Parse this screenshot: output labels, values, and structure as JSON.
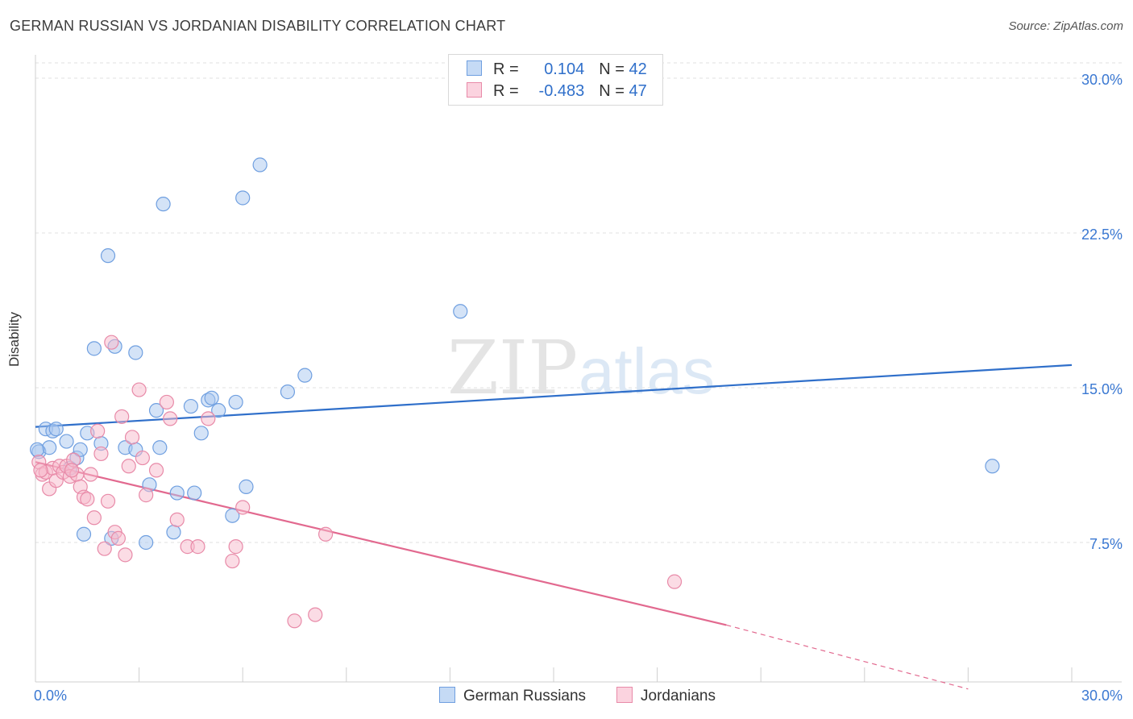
{
  "title": "GERMAN RUSSIAN VS JORDANIAN DISABILITY CORRELATION CHART",
  "source": "Source: ZipAtlas.com",
  "watermark": {
    "zip": "ZIP",
    "atlas": "atlas"
  },
  "legend": {
    "rows": [
      {
        "r_label": "R =",
        "r_value": "0.104",
        "n_label": "N =",
        "n_value": "42",
        "color": "#a9c8f0",
        "border": "#6f9fe0"
      },
      {
        "r_label": "R =",
        "r_value": "-0.483",
        "n_label": "N =",
        "n_value": "47",
        "color": "#f7b9cc",
        "border": "#e88aa8"
      }
    ]
  },
  "bottom_legend": [
    {
      "label": "German Russians",
      "color": "#a9c8f0",
      "border": "#6f9fe0"
    },
    {
      "label": "Jordanians",
      "color": "#f7b9cc",
      "border": "#e88aa8"
    }
  ],
  "chart_data": {
    "type": "scatter",
    "title": "GERMAN RUSSIAN VS JORDANIAN DISABILITY CORRELATION CHART",
    "xlabel": "",
    "ylabel": "Disability",
    "xlim": [
      0,
      30
    ],
    "ylim": [
      0,
      30
    ],
    "x_tick_labels": [
      "0.0%",
      "30.0%"
    ],
    "y_ticks": [
      7.5,
      15.0,
      22.5,
      30.0
    ],
    "y_tick_labels": [
      "7.5%",
      "15.0%",
      "22.5%",
      "30.0%"
    ],
    "grid": true,
    "series": [
      {
        "name": "German Russians",
        "color": "#6f9fe0",
        "fill": "#a9c8f0",
        "line_color": "#2f6fca",
        "trend": {
          "x": [
            0,
            30
          ],
          "y": [
            13.1,
            16.1
          ],
          "dashed_to": null
        },
        "points": [
          [
            0.1,
            11.9
          ],
          [
            0.3,
            13.0
          ],
          [
            0.5,
            12.9
          ],
          [
            0.6,
            13.0
          ],
          [
            0.4,
            12.1
          ],
          [
            0.9,
            12.4
          ],
          [
            1.0,
            11.1
          ],
          [
            1.2,
            11.6
          ],
          [
            1.3,
            12.0
          ],
          [
            1.5,
            12.8
          ],
          [
            1.9,
            12.3
          ],
          [
            1.4,
            7.9
          ],
          [
            2.2,
            7.7
          ],
          [
            2.6,
            12.1
          ],
          [
            2.9,
            12.0
          ],
          [
            3.2,
            7.5
          ],
          [
            3.3,
            10.3
          ],
          [
            3.5,
            13.9
          ],
          [
            3.6,
            12.1
          ],
          [
            4.0,
            8.0
          ],
          [
            4.1,
            9.9
          ],
          [
            4.5,
            14.1
          ],
          [
            4.6,
            9.9
          ],
          [
            4.8,
            12.8
          ],
          [
            5.0,
            14.4
          ],
          [
            5.1,
            14.5
          ],
          [
            5.3,
            13.9
          ],
          [
            5.7,
            8.8
          ],
          [
            5.8,
            14.3
          ],
          [
            6.1,
            10.2
          ],
          [
            7.3,
            14.8
          ],
          [
            7.8,
            15.6
          ],
          [
            1.7,
            16.9
          ],
          [
            2.3,
            17.0
          ],
          [
            2.9,
            16.7
          ],
          [
            2.1,
            21.4
          ],
          [
            3.7,
            23.9
          ],
          [
            6.0,
            24.2
          ],
          [
            6.5,
            25.8
          ],
          [
            12.3,
            18.7
          ],
          [
            27.7,
            11.2
          ],
          [
            0.05,
            12.0
          ]
        ]
      },
      {
        "name": "Jordanians",
        "color": "#e88aa8",
        "fill": "#f7b9cc",
        "line_color": "#e2698f",
        "trend": {
          "x": [
            0,
            20
          ],
          "y": [
            11.4,
            3.5
          ],
          "dashed_x_end": 27.0,
          "dashed_y_end": 0.4
        },
        "points": [
          [
            0.1,
            11.4
          ],
          [
            0.2,
            10.8
          ],
          [
            0.3,
            10.9
          ],
          [
            0.4,
            10.1
          ],
          [
            0.5,
            11.1
          ],
          [
            0.6,
            10.5
          ],
          [
            0.7,
            11.2
          ],
          [
            0.8,
            10.9
          ],
          [
            0.9,
            11.2
          ],
          [
            1.0,
            10.7
          ],
          [
            1.1,
            11.5
          ],
          [
            1.2,
            10.8
          ],
          [
            1.3,
            10.2
          ],
          [
            1.4,
            9.7
          ],
          [
            1.5,
            9.6
          ],
          [
            1.6,
            10.8
          ],
          [
            1.7,
            8.7
          ],
          [
            1.8,
            12.9
          ],
          [
            1.9,
            11.8
          ],
          [
            2.0,
            7.2
          ],
          [
            2.1,
            9.5
          ],
          [
            2.3,
            8.0
          ],
          [
            2.4,
            7.7
          ],
          [
            2.5,
            13.6
          ],
          [
            2.6,
            6.9
          ],
          [
            2.7,
            11.2
          ],
          [
            2.8,
            12.6
          ],
          [
            3.0,
            14.9
          ],
          [
            3.1,
            11.6
          ],
          [
            3.2,
            9.8
          ],
          [
            3.5,
            11.0
          ],
          [
            3.8,
            14.3
          ],
          [
            3.9,
            13.5
          ],
          [
            4.1,
            8.6
          ],
          [
            4.4,
            7.3
          ],
          [
            4.7,
            7.3
          ],
          [
            5.0,
            13.5
          ],
          [
            5.7,
            6.6
          ],
          [
            5.8,
            7.3
          ],
          [
            6.0,
            9.2
          ],
          [
            7.5,
            3.7
          ],
          [
            8.1,
            4.0
          ],
          [
            8.4,
            7.9
          ],
          [
            2.2,
            17.2
          ],
          [
            18.5,
            5.6
          ],
          [
            0.15,
            11.0
          ],
          [
            1.05,
            11.0
          ]
        ]
      }
    ]
  }
}
